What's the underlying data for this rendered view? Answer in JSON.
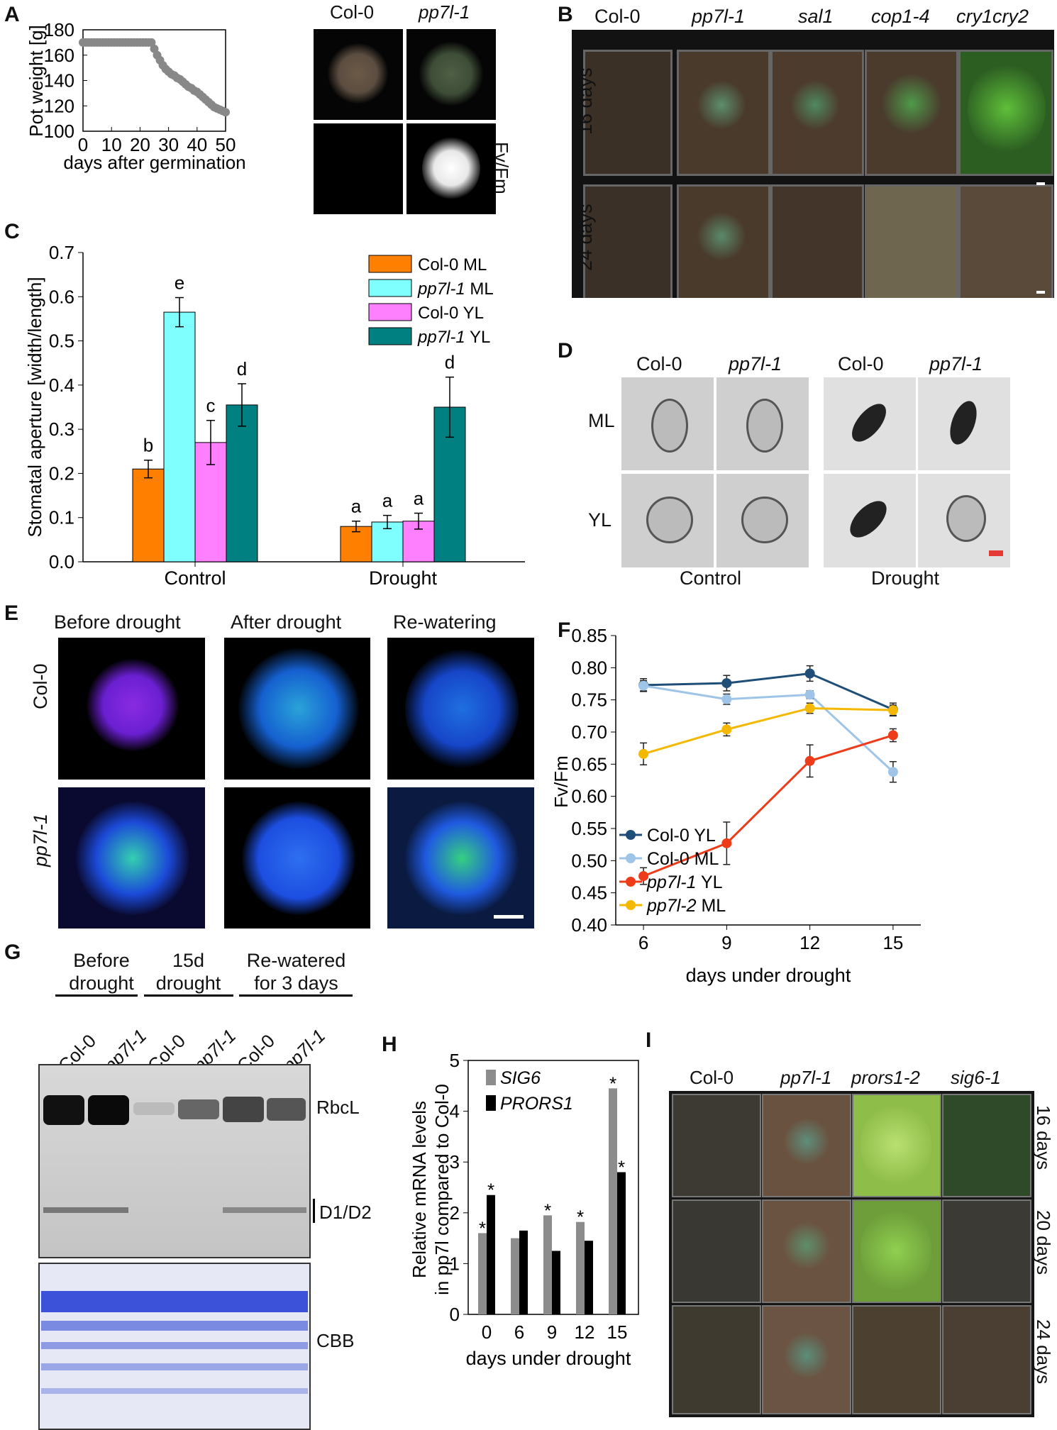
{
  "panels": {
    "A": {
      "label": "A",
      "col_headers": [
        "Col-0",
        "pp7l-1"
      ],
      "side_label": "Fv/Fm"
    },
    "B": {
      "label": "B",
      "col_headers": [
        "Col-0",
        "pp7l-1",
        "sal1",
        "cop1-4",
        "cry1cry2"
      ],
      "row_labels": [
        "16 days",
        "24 days"
      ]
    },
    "C": {
      "label": "C"
    },
    "D": {
      "label": "D",
      "col_headers": [
        "Col-0",
        "pp7l-1",
        "Col-0",
        "pp7l-1"
      ],
      "row_labels": [
        "ML",
        "YL"
      ],
      "group_labels": [
        "Control",
        "Drought"
      ]
    },
    "E": {
      "label": "E",
      "col_headers": [
        "Before drought",
        "After drought",
        "Re-watering"
      ],
      "row_labels": [
        "Col-0",
        "pp7l-1"
      ]
    },
    "F": {
      "label": "F"
    },
    "G": {
      "label": "G",
      "group_labels": [
        "Before drought",
        "15d drought",
        "Re-watered for 3 days"
      ],
      "lane_labels": [
        "Col-0",
        "pp7l-1",
        "Col-0",
        "pp7l-1",
        "Col-0",
        "pp7l-1"
      ],
      "band_labels": [
        "RbcL",
        "D1/D2",
        "CBB"
      ]
    },
    "H": {
      "label": "H"
    },
    "I": {
      "label": "I",
      "col_headers": [
        "Col-0",
        "pp7l-1",
        "prors1-2",
        "sig6-1"
      ],
      "row_labels": [
        "16 days",
        "20 days",
        "24 days"
      ]
    }
  },
  "chart_data": [
    {
      "id": "A",
      "type": "line",
      "xlabel": "days after germination",
      "ylabel": "Pot weight [g]",
      "xlim": [
        0,
        50
      ],
      "ylim": [
        100,
        180
      ],
      "xticks": [
        0,
        10,
        20,
        30,
        40,
        50
      ],
      "yticks": [
        100,
        120,
        140,
        160,
        180
      ],
      "x": [
        0,
        1,
        2,
        3,
        4,
        5,
        6,
        7,
        8,
        9,
        10,
        11,
        12,
        13,
        14,
        15,
        16,
        17,
        18,
        19,
        20,
        21,
        22,
        23,
        24,
        25,
        26,
        27,
        28,
        29,
        30,
        31,
        32,
        33,
        34,
        35,
        36,
        37,
        38,
        39,
        40,
        41,
        42,
        43,
        44,
        45,
        46,
        47,
        48,
        49,
        50
      ],
      "y": [
        170,
        170,
        170,
        170,
        170,
        170,
        170,
        170,
        170,
        170,
        170,
        170,
        170,
        170,
        170,
        170,
        170,
        170,
        170,
        170,
        170,
        170,
        170,
        170,
        170,
        165,
        160,
        156,
        152,
        149,
        147,
        145,
        144,
        142,
        141,
        139,
        137,
        135,
        134,
        132,
        131,
        129,
        127,
        125,
        123,
        121,
        119,
        118,
        117,
        116,
        115
      ]
    },
    {
      "id": "C",
      "type": "bar",
      "ylabel": "Stomatal aperture [width/length]",
      "ylim": [
        0,
        0.7
      ],
      "yticks": [
        0.0,
        0.1,
        0.2,
        0.3,
        0.4,
        0.5,
        0.6,
        0.7
      ],
      "categories": [
        "Control",
        "Drought"
      ],
      "series": [
        {
          "name": "Col-0 ML",
          "color": "#ff8000",
          "values": [
            0.21,
            0.08
          ],
          "errors": [
            0.02,
            0.012
          ],
          "letters": [
            "b",
            "a"
          ]
        },
        {
          "name": "pp7l-1 ML",
          "color": "#80ffff",
          "values": [
            0.565,
            0.09
          ],
          "errors": [
            0.033,
            0.015
          ],
          "letters": [
            "e",
            "a"
          ]
        },
        {
          "name": "Col-0 YL",
          "color": "#ff80ff",
          "values": [
            0.27,
            0.092
          ],
          "errors": [
            0.05,
            0.018
          ],
          "letters": [
            "c",
            "a"
          ]
        },
        {
          "name": "pp7l-1 YL",
          "color": "#008080",
          "values": [
            0.355,
            0.35
          ],
          "errors": [
            0.048,
            0.068
          ],
          "letters": [
            "d",
            "d"
          ]
        }
      ]
    },
    {
      "id": "F",
      "type": "line",
      "xlabel": "days under drought",
      "ylabel": "Fv/Fm",
      "xlim": [
        5,
        16
      ],
      "ylim": [
        0.4,
        0.85
      ],
      "xticks": [
        6,
        9,
        12,
        15
      ],
      "yticks": [
        0.4,
        0.45,
        0.5,
        0.55,
        0.6,
        0.65,
        0.7,
        0.75,
        0.8,
        0.85
      ],
      "x": [
        6,
        9,
        12,
        15
      ],
      "series": [
        {
          "name": "Col-0 YL",
          "color": "#1f4e79",
          "values": [
            0.773,
            0.776,
            0.791,
            0.735
          ],
          "errors": [
            0.01,
            0.012,
            0.012,
            0.01
          ]
        },
        {
          "name": "Col-0 ML",
          "color": "#9ec5e8",
          "values": [
            0.772,
            0.751,
            0.758,
            0.638
          ],
          "errors": [
            0.008,
            0.008,
            0.006,
            0.016
          ]
        },
        {
          "name": "pp7l-1 YL",
          "color": "#ee3b1a",
          "values": [
            0.476,
            0.527,
            0.655,
            0.695
          ],
          "errors": [
            0.013,
            0.033,
            0.025,
            0.01
          ]
        },
        {
          "name": "pp7l-2 ML",
          "color": "#f5b800",
          "values": [
            0.666,
            0.704,
            0.737,
            0.734
          ],
          "errors": [
            0.017,
            0.01,
            0.008,
            0.008
          ]
        }
      ]
    },
    {
      "id": "H",
      "type": "bar",
      "xlabel": "days under drought",
      "ylabel_lines": [
        "Relative mRNA  levels",
        "in pp7l compared to Col-0"
      ],
      "ylim": [
        0,
        5
      ],
      "yticks": [
        0,
        1,
        2,
        3,
        4,
        5
      ],
      "categories": [
        "0",
        "6",
        "9",
        "12",
        "15"
      ],
      "series": [
        {
          "name": "SIG6",
          "color": "#8c8c8c",
          "values": [
            1.6,
            1.5,
            1.95,
            1.82,
            4.45
          ],
          "stars": [
            true,
            false,
            true,
            true,
            true
          ]
        },
        {
          "name": "PRORS1",
          "color": "#000000",
          "values": [
            2.35,
            1.65,
            1.25,
            1.45,
            2.8
          ],
          "stars": [
            true,
            false,
            false,
            false,
            true
          ]
        }
      ]
    }
  ]
}
